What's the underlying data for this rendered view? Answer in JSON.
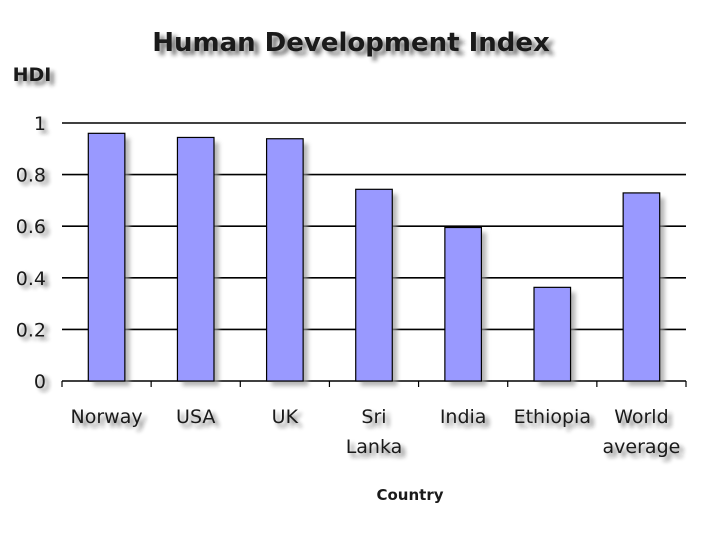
{
  "chart_data": {
    "type": "bar",
    "title": "Human Development Index",
    "ylabel": "HDI",
    "xlabel": "Country",
    "categories": [
      [
        "Norway"
      ],
      [
        "USA"
      ],
      [
        "UK"
      ],
      [
        "Sri",
        "Lanka"
      ],
      [
        "India"
      ],
      [
        "Ethiopia"
      ],
      [
        "World",
        "average"
      ]
    ],
    "values": [
      0.96,
      0.944,
      0.939,
      0.743,
      0.595,
      0.363,
      0.729
    ],
    "ylim": [
      0,
      1
    ],
    "yticks": [
      "0",
      "0.2",
      "0.4",
      "0.6",
      "0.8",
      "1"
    ],
    "grid": true,
    "legend": "none",
    "colors": {
      "bar": "#9999ff",
      "bar_outline": "#000000",
      "grid": "#000000",
      "shadow": "#9a9a9a"
    }
  }
}
